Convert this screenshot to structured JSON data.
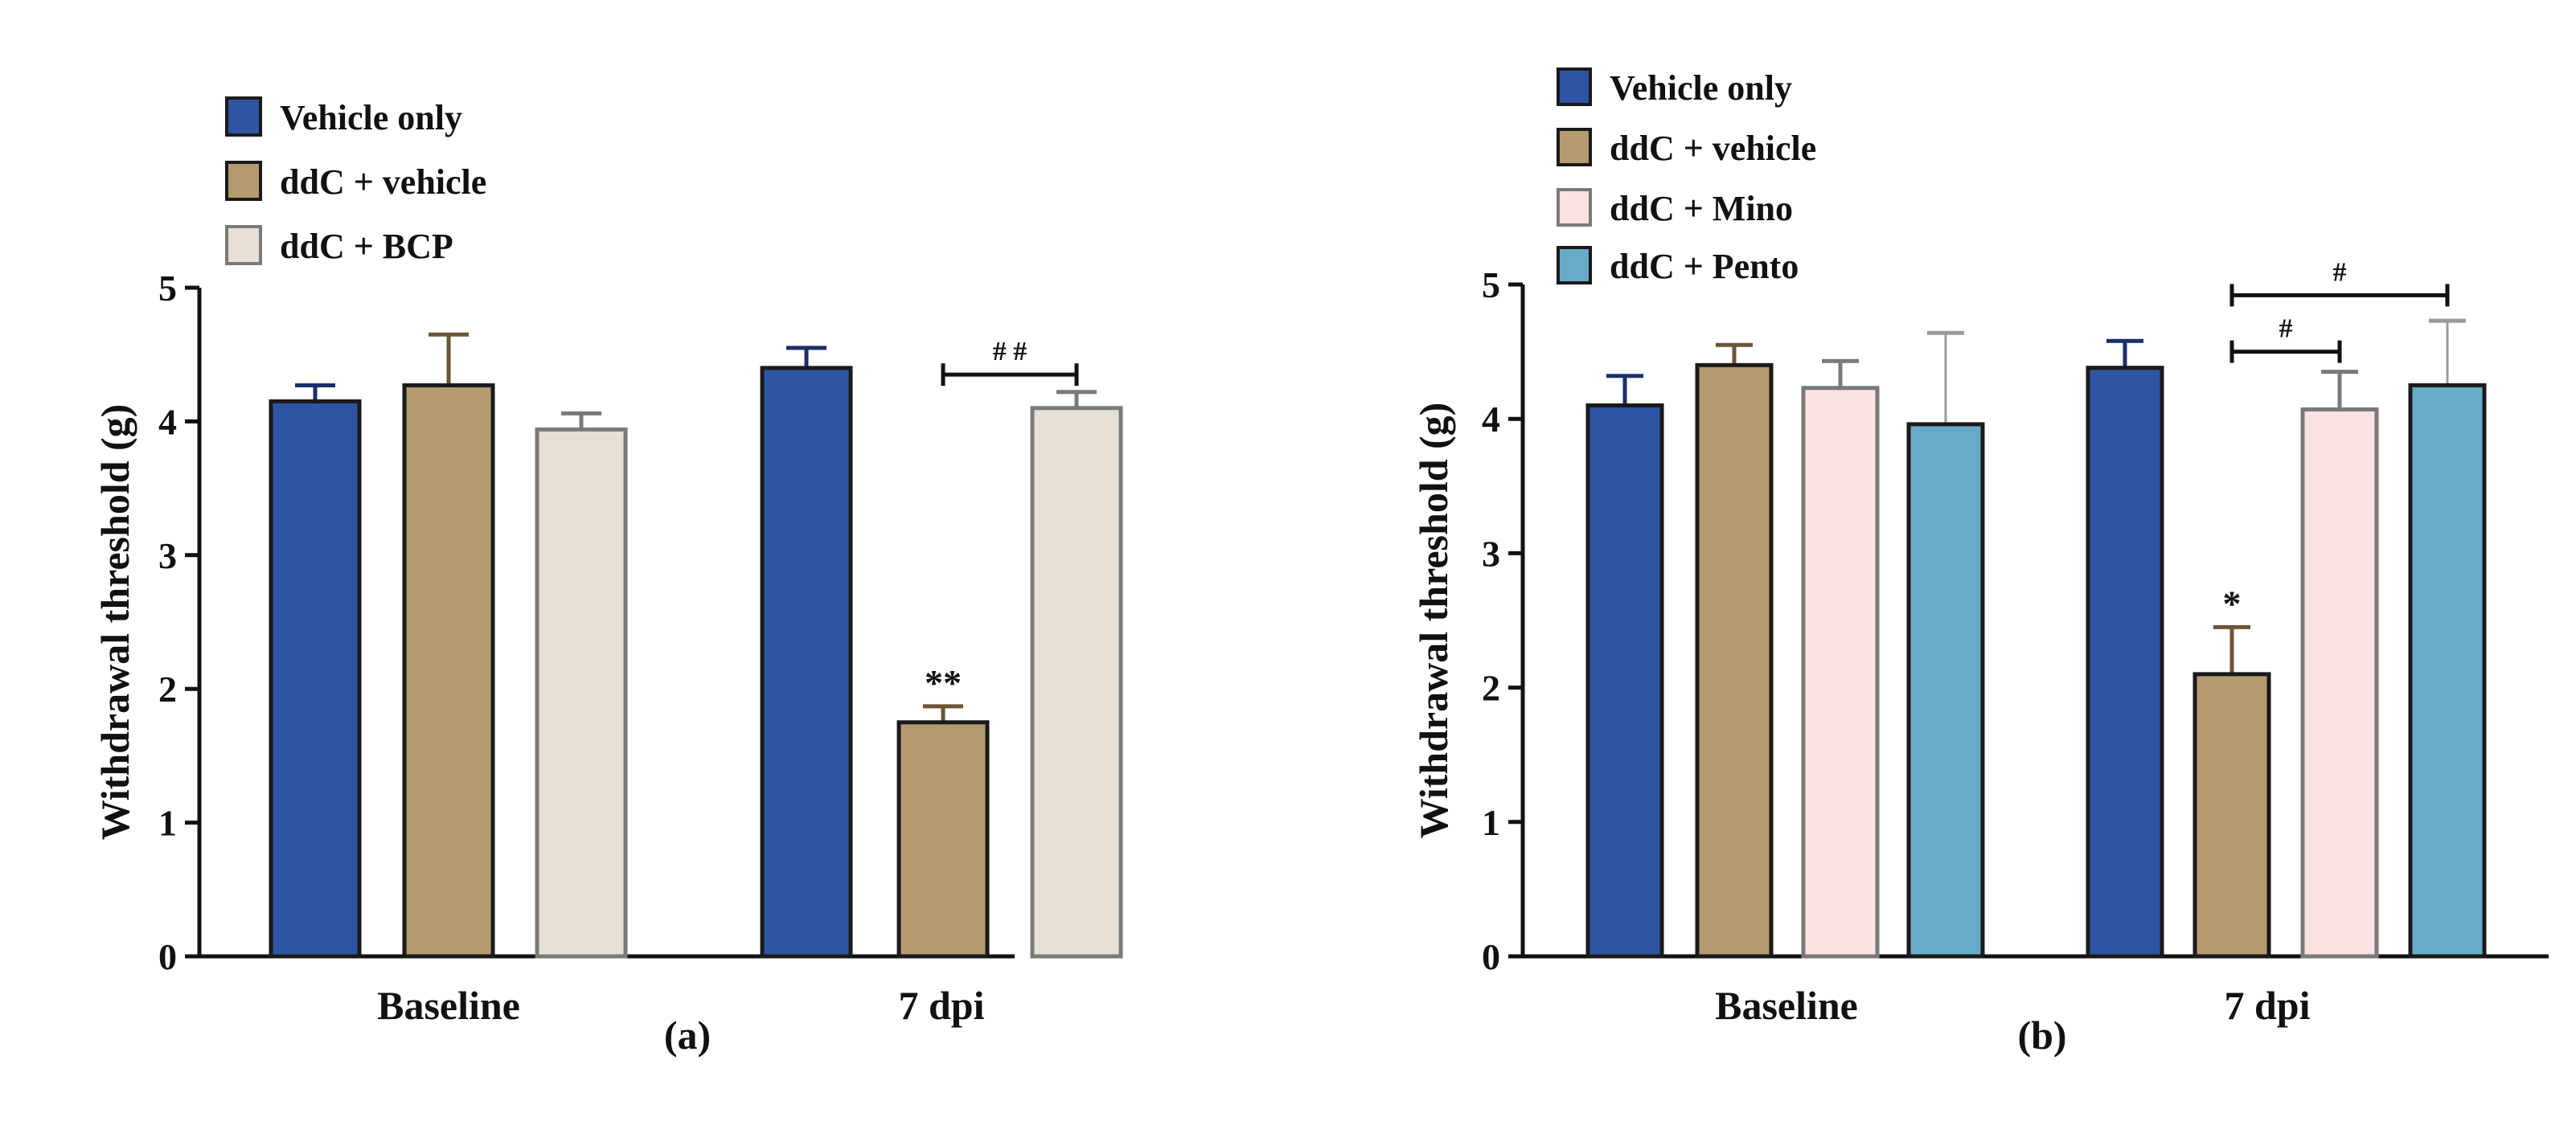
{
  "colors": {
    "Vehicle only": "#2E55A3",
    "ddC + vehicle": "#B49A6E",
    "ddC + BCP": "#E6E0D6",
    "ddC + Mino": "#FCE2E2",
    "ddC + Pento": "#67ABC6",
    "axis": "#111111",
    "outline_default": "#1a1a1a",
    "outline_light": "#7a7a7a"
  },
  "chart_data": [
    {
      "type": "bar",
      "panel_label": "(a)",
      "title": "",
      "xlabel": "",
      "ylabel": "Withdrawal threshold (g)",
      "ylim": [
        0,
        5
      ],
      "yticks": [
        "0",
        "1",
        "2",
        "3",
        "4",
        "5"
      ],
      "grid": false,
      "legend_position": "top-left",
      "categories": [
        "Baseline",
        "7 dpi"
      ],
      "series": [
        {
          "name": "Vehicle only",
          "values": [
            4.15,
            4.4
          ],
          "errors": [
            0.12,
            0.15
          ],
          "annotations": [
            "",
            ""
          ]
        },
        {
          "name": "ddC + vehicle",
          "values": [
            4.27,
            1.75
          ],
          "errors": [
            0.38,
            0.12
          ],
          "annotations": [
            "",
            "**"
          ]
        },
        {
          "name": "ddC + BCP",
          "values": [
            3.94,
            4.1
          ],
          "errors": [
            0.12,
            0.12
          ],
          "annotations": [
            "",
            ""
          ]
        }
      ],
      "comparisons": [
        {
          "category": "7 dpi",
          "from": "ddC + vehicle",
          "to": "ddC + BCP",
          "y": 4.35,
          "label": "# #"
        }
      ]
    },
    {
      "type": "bar",
      "panel_label": "(b)",
      "title": "",
      "xlabel": "",
      "ylabel": "Withdrawal threshold (g)",
      "ylim": [
        0,
        5
      ],
      "yticks": [
        "0",
        "1",
        "2",
        "3",
        "4",
        "5"
      ],
      "grid": false,
      "legend_position": "top-left",
      "categories": [
        "Baseline",
        "7 dpi"
      ],
      "series": [
        {
          "name": "Vehicle only",
          "values": [
            4.1,
            4.38
          ],
          "errors": [
            0.22,
            0.2
          ],
          "annotations": [
            "",
            ""
          ]
        },
        {
          "name": "ddC + vehicle",
          "values": [
            4.4,
            2.1
          ],
          "errors": [
            0.15,
            0.35
          ],
          "annotations": [
            "",
            "*"
          ]
        },
        {
          "name": "ddC + Mino",
          "values": [
            4.23,
            4.07
          ],
          "errors": [
            0.2,
            0.28
          ],
          "annotations": [
            "",
            ""
          ]
        },
        {
          "name": "ddC + Pento",
          "values": [
            3.96,
            4.25
          ],
          "errors": [
            0.68,
            0.48
          ],
          "annotations": [
            "",
            ""
          ]
        }
      ],
      "comparisons": [
        {
          "category": "7 dpi",
          "from": "ddC + vehicle",
          "to": "ddC + Mino",
          "y": 4.5,
          "label": "#"
        },
        {
          "category": "7 dpi",
          "from": "ddC + vehicle",
          "to": "ddC + Pento",
          "y": 4.92,
          "label": "#"
        }
      ]
    }
  ]
}
